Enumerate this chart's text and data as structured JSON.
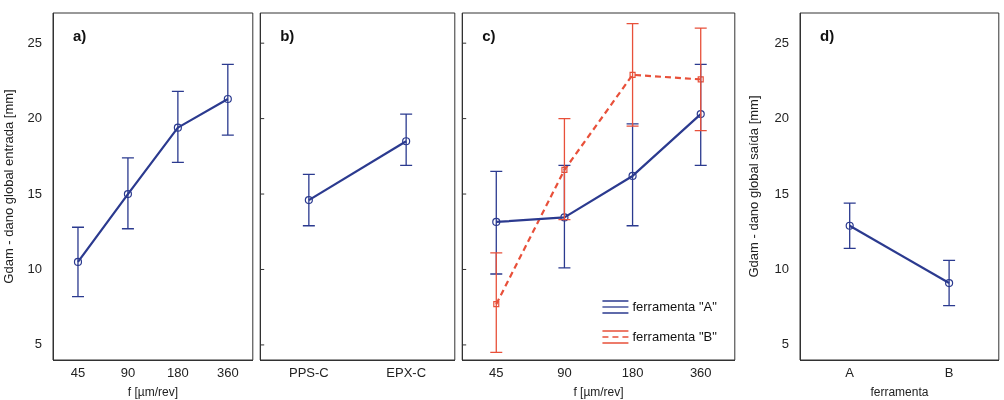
{
  "chart_data": [
    {
      "type": "line",
      "title": "a)",
      "xlabel": "f [µm/rev]",
      "ylabel": "Gdam - dano global entrada [mm]",
      "categories": [
        "45",
        "90",
        "180",
        "360"
      ],
      "ylim": [
        4,
        27
      ],
      "yticks": [
        5,
        10,
        15,
        20,
        25
      ],
      "grid": false,
      "legend": false,
      "marker": "circle",
      "series": [
        {
          "color": "#2b3a8f",
          "values": [
            10.5,
            15,
            19.4,
            21.3
          ],
          "errors": [
            [
              8.2,
              12.8
            ],
            [
              12.7,
              17.4
            ],
            [
              17.1,
              21.8
            ],
            [
              18.9,
              23.6
            ]
          ]
        }
      ]
    },
    {
      "type": "line",
      "title": "b)",
      "categories": [
        "PPS-C",
        "EPX-C"
      ],
      "ylim": [
        4,
        27
      ],
      "yticks": [
        5,
        10,
        15,
        20,
        25
      ],
      "tick_labels": "x",
      "grid": false,
      "legend": false,
      "marker": "circle",
      "series": [
        {
          "color": "#2b3a8f",
          "values": [
            14.6,
            18.5
          ],
          "errors": [
            [
              12.9,
              16.3
            ],
            [
              16.9,
              20.3
            ]
          ]
        }
      ]
    },
    {
      "type": "line",
      "title": "c)",
      "xlabel": "f [µm/rev]",
      "categories": [
        "45",
        "90",
        "180",
        "360"
      ],
      "ylim": [
        4,
        27
      ],
      "yticks": [
        5,
        10,
        15,
        20,
        25
      ],
      "tick_labels": "x",
      "grid": false,
      "legend": "bottom right",
      "series": [
        {
          "name": "ferramenta \"A\"",
          "color": "#2b3a8f",
          "marker": "circle",
          "line_style": "solid",
          "values": [
            13.15,
            13.45,
            16.2,
            20.3
          ],
          "errors": [
            [
              9.7,
              16.5
            ],
            [
              10.1,
              16.9
            ],
            [
              12.9,
              19.65
            ],
            [
              16.9,
              23.6
            ]
          ]
        },
        {
          "name": "ferramenta \"B\"",
          "color": "#e8503a",
          "marker": "square",
          "line_style": "dashed",
          "values": [
            7.7,
            16.6,
            22.9,
            22.6
          ],
          "errors": [
            [
              4.5,
              11.1
            ],
            [
              13.3,
              20.0
            ],
            [
              19.5,
              26.3
            ],
            [
              19.2,
              26.0
            ]
          ]
        }
      ]
    },
    {
      "type": "line",
      "title": "d)",
      "xlabel": "ferramenta",
      "ylabel": "Gdam - dano global saída [mm]",
      "categories": [
        "A",
        "B"
      ],
      "ylim": [
        4,
        27
      ],
      "yticks": [
        5,
        10,
        15,
        20,
        25
      ],
      "grid": false,
      "legend": false,
      "marker": "circle",
      "series": [
        {
          "color": "#2b3a8f",
          "values": [
            12.9,
            9.1
          ],
          "errors": [
            [
              11.4,
              14.4
            ],
            [
              7.6,
              10.6
            ]
          ]
        }
      ]
    }
  ]
}
